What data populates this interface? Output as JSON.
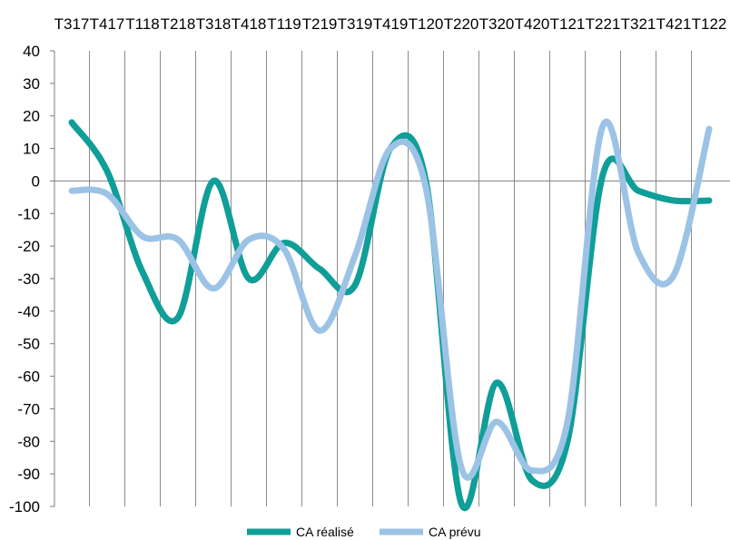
{
  "chart_data": {
    "type": "line",
    "title": "",
    "xlabel": "",
    "ylabel": "",
    "categories": [
      "T317",
      "T417",
      "T118",
      "T218",
      "T318",
      "T418",
      "T119",
      "T219",
      "T319",
      "T419",
      "T120",
      "T220",
      "T320",
      "T420",
      "T121",
      "T221",
      "T321",
      "T421",
      "T122"
    ],
    "ylim": [
      -100,
      40
    ],
    "yticks": [
      40,
      30,
      20,
      10,
      0,
      -10,
      -20,
      -30,
      -40,
      -50,
      -60,
      -70,
      -80,
      -90,
      -100
    ],
    "x_axis_position": "top",
    "grid": "vertical",
    "legend": "bottom",
    "series": [
      {
        "name": "CA réalisé",
        "color": "#109e98",
        "values": [
          18,
          3,
          -28,
          -42,
          0,
          -30,
          -19,
          -27,
          -32,
          10,
          0,
          -99,
          -62,
          -92,
          -80,
          2,
          -3,
          -6,
          -6
        ]
      },
      {
        "name": "CA prévu",
        "color": "#9cc3e5",
        "values": [
          -3,
          -4,
          -17,
          -18,
          -33,
          -18,
          -21,
          -46,
          -23,
          10,
          -2,
          -88,
          -74,
          -89,
          -74,
          17,
          -22,
          -29,
          16
        ]
      }
    ]
  }
}
